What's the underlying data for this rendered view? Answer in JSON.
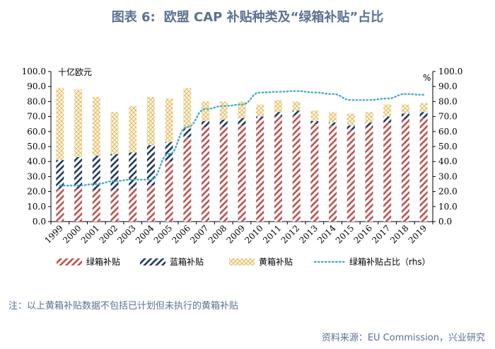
{
  "header": {
    "figure_label": "图表 6:",
    "figure_title": "欧盟 CAP 补贴种类及“绿箱补贴”占比"
  },
  "footer": {
    "note": "注：以上黄箱补贴数据不包括已计划但未执行的黄箱补贴",
    "source": "资料来源：EU Commission，兴业研究"
  },
  "colors": {
    "green_box": "#c0504d",
    "blue_box": "#1f3864",
    "yellow_box": "#e8c26a",
    "share_line": "#4bacc6"
  },
  "chart_data": {
    "type": "bar",
    "stacked": true,
    "title": "欧盟 CAP 补贴种类及“绿箱补贴”占比",
    "left_unit": "十亿欧元",
    "right_unit": "%",
    "ylim": [
      0,
      100
    ],
    "y2lim": [
      0,
      100
    ],
    "y_ticks": [
      "0.0",
      "10.0",
      "20.0",
      "30.0",
      "40.0",
      "50.0",
      "60.0",
      "70.0",
      "80.0",
      "90.0",
      "100.0"
    ],
    "categories": [
      "1999",
      "2000",
      "2001",
      "2002",
      "2003",
      "2004",
      "2005",
      "2006",
      "2007",
      "2008",
      "2009",
      "2010",
      "2011",
      "2012",
      "2013",
      "2014",
      "2015",
      "2016",
      "2017",
      "2018",
      "2019"
    ],
    "series": [
      {
        "name": "绿箱补贴",
        "values": [
          22,
          22,
          21,
          21,
          22,
          24,
          40,
          56,
          63,
          63,
          64,
          68,
          70,
          71,
          65,
          64,
          61,
          63,
          66,
          68,
          69
        ]
      },
      {
        "name": "蓝箱补贴",
        "values": [
          19,
          21,
          23,
          24,
          24,
          27,
          13,
          6,
          4,
          5,
          5,
          2,
          3,
          3,
          2,
          2,
          3,
          3,
          4,
          4,
          4
        ]
      },
      {
        "name": "黄箱补贴",
        "values": [
          48,
          45,
          39,
          28,
          31,
          32,
          29,
          27,
          13,
          12,
          11,
          8,
          8,
          6,
          7,
          7,
          8,
          7,
          8,
          6,
          6
        ]
      },
      {
        "name": "绿箱补贴占比（rhs）",
        "type": "line",
        "axis": "right",
        "values": [
          24,
          24,
          25,
          27,
          28,
          28,
          45,
          63,
          75,
          77,
          78,
          86,
          86.5,
          87,
          86,
          85,
          81,
          81,
          82,
          85,
          84.5
        ]
      }
    ]
  }
}
